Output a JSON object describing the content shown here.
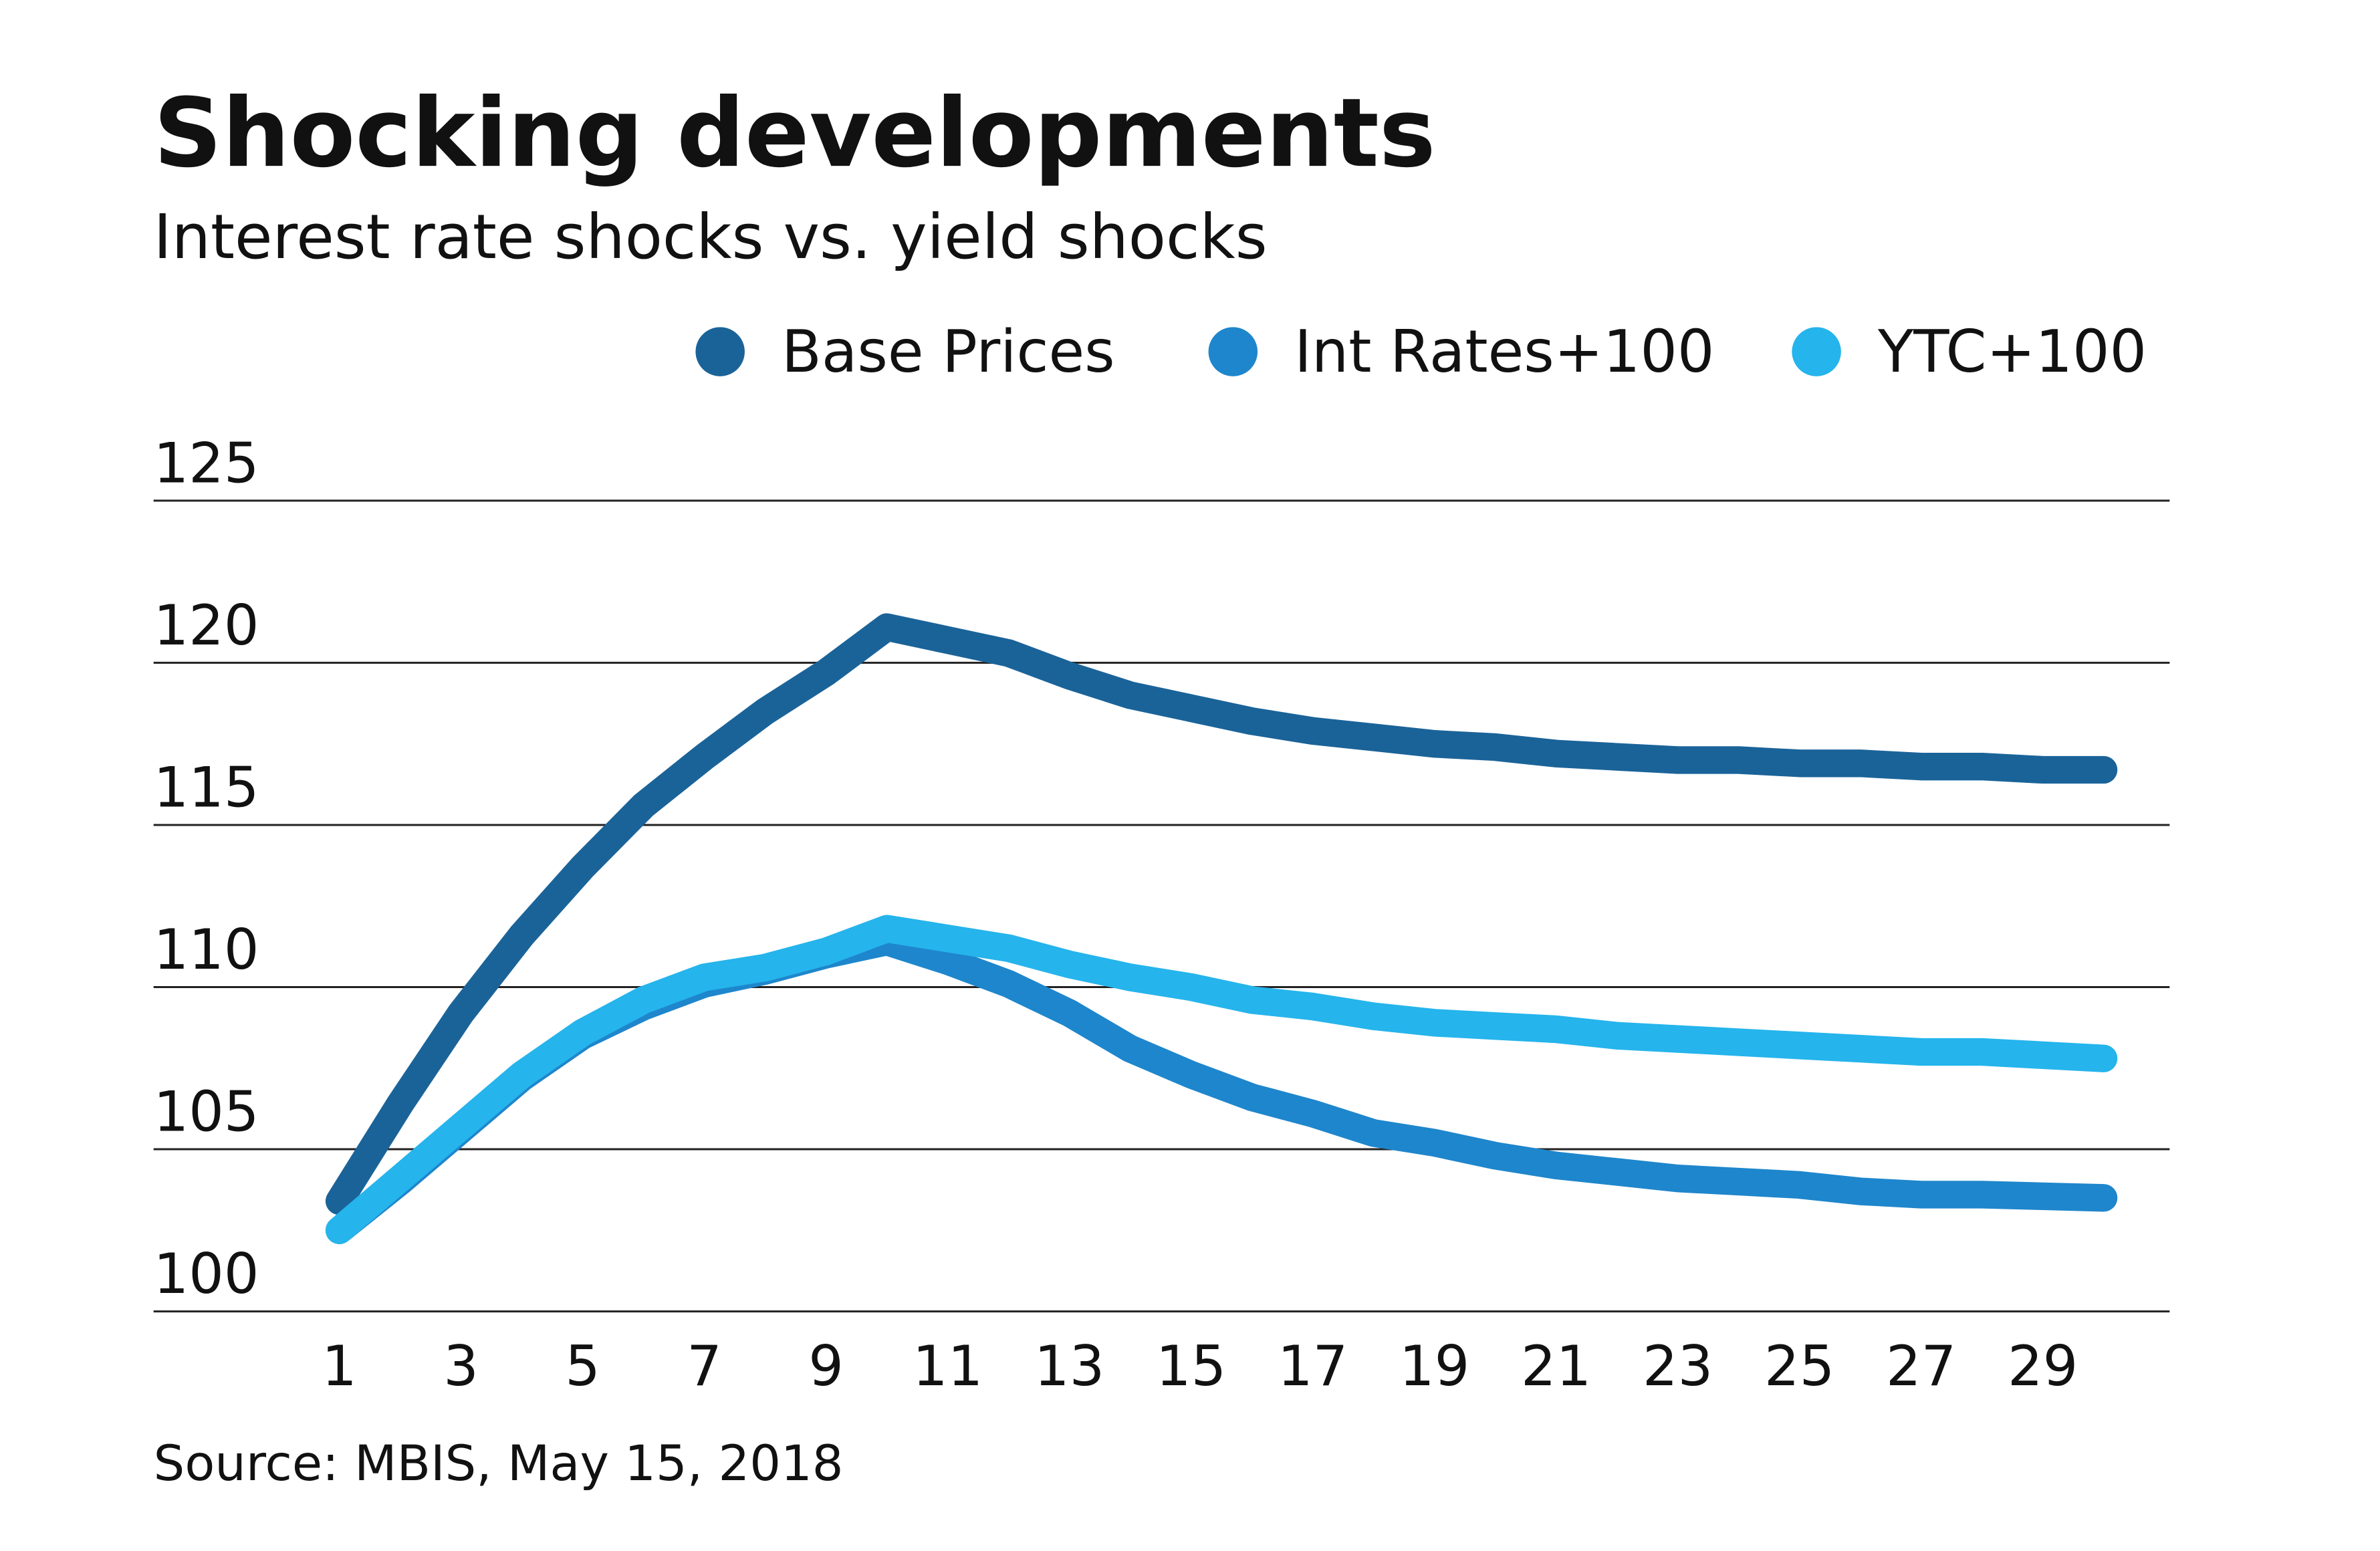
{
  "chart_data": {
    "type": "line",
    "title": "Shocking developments",
    "subtitle": "Interest rate shocks vs. yield shocks",
    "source": "Source: MBIS, May 15, 2018",
    "x": [
      1,
      2,
      3,
      4,
      5,
      6,
      7,
      8,
      9,
      10,
      11,
      12,
      13,
      14,
      15,
      16,
      17,
      18,
      19,
      20,
      21,
      22,
      23,
      24,
      25,
      26,
      27,
      28,
      29,
      30
    ],
    "xlim": [
      1,
      30
    ],
    "xticks": [
      1,
      3,
      5,
      7,
      9,
      11,
      13,
      15,
      17,
      19,
      21,
      23,
      25,
      27,
      29
    ],
    "ylim": [
      100,
      125
    ],
    "yticks": [
      100,
      105,
      110,
      115,
      120,
      125
    ],
    "grid": true,
    "legend": "top-right",
    "series": [
      {
        "name": "Base Prices",
        "color": "#1a6399",
        "values": [
          103.4,
          106.4,
          109.2,
          111.6,
          113.7,
          115.6,
          117.1,
          118.5,
          119.7,
          121.1,
          120.7,
          120.3,
          119.6,
          119.0,
          118.6,
          118.2,
          117.9,
          117.7,
          117.5,
          117.4,
          117.2,
          117.1,
          117.0,
          117.0,
          116.9,
          116.9,
          116.8,
          116.8,
          116.7,
          116.7
        ]
      },
      {
        "name": "Int Rates+100",
        "color": "#1e86cc",
        "values": [
          102.5,
          104.0,
          105.6,
          107.2,
          108.5,
          109.4,
          110.1,
          110.5,
          111.0,
          111.4,
          110.8,
          110.1,
          109.2,
          108.1,
          107.3,
          106.6,
          106.1,
          105.5,
          105.2,
          104.8,
          104.5,
          104.3,
          104.1,
          104.0,
          103.9,
          103.7,
          103.6,
          103.6,
          103.55,
          103.5
        ]
      },
      {
        "name": "YTC+100",
        "color": "#25b4ec",
        "values": [
          102.5,
          104.1,
          105.7,
          107.3,
          108.6,
          109.6,
          110.3,
          110.6,
          111.1,
          111.8,
          111.5,
          111.2,
          110.7,
          110.3,
          110.0,
          109.6,
          109.4,
          109.1,
          108.9,
          108.8,
          108.7,
          108.5,
          108.4,
          108.3,
          108.2,
          108.1,
          108.0,
          108.0,
          107.9,
          107.8
        ]
      }
    ]
  }
}
